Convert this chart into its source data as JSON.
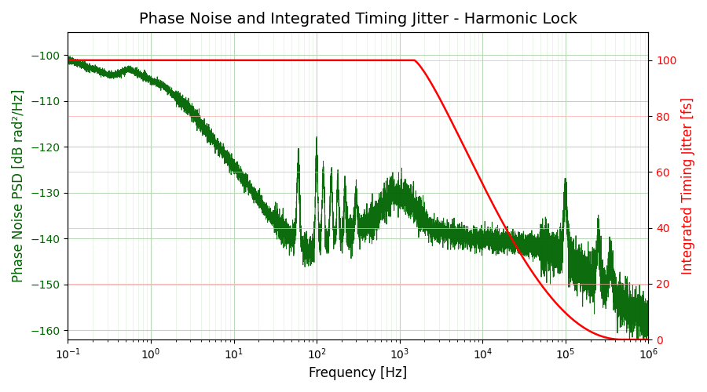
{
  "title": "Phase Noise and Integrated Timing Jitter - Harmonic Lock",
  "xlabel": "Frequency [Hz]",
  "ylabel_left": "Phase Noise PSD [dB rad²/Hz]",
  "ylabel_right": "Integrated Timing Jitter [fs]",
  "xlim_log": [
    -1,
    6
  ],
  "ylim_left": [
    -162,
    -95
  ],
  "ylim_right": [
    0,
    110
  ],
  "yticks_left": [
    -160,
    -150,
    -140,
    -130,
    -120,
    -110,
    -100
  ],
  "yticks_right": [
    0,
    20,
    40,
    60,
    80,
    100
  ],
  "phase_noise_color": "#006400",
  "jitter_color": "#ff0000",
  "background_color": "#ffffff",
  "title_fontsize": 14,
  "label_fontsize": 12
}
